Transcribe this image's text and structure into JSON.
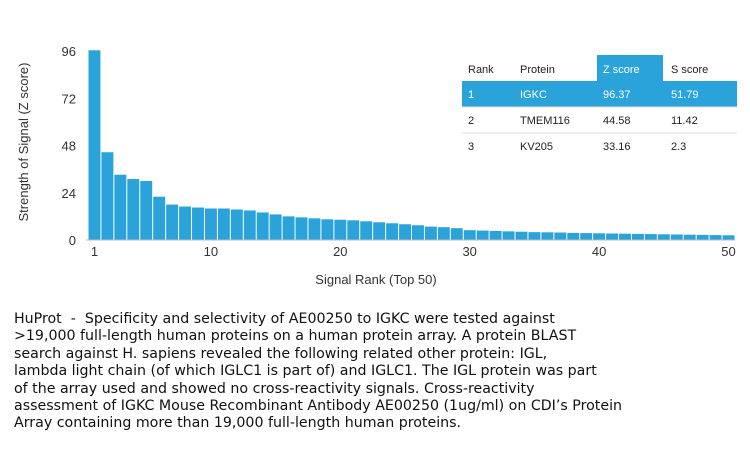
{
  "chart_data": {
    "type": "bar",
    "title": "",
    "xlabel": "Signal Rank (Top 50)",
    "ylabel": "Strength of Signal (Z score)",
    "xlim": [
      1,
      50
    ],
    "ylim": [
      0,
      96
    ],
    "x_ticks": [
      1,
      10,
      20,
      30,
      40,
      50
    ],
    "y_ticks": [
      0,
      24,
      48,
      72,
      96
    ],
    "grid": false,
    "bar_color": "#2aa3db",
    "x": [
      1,
      2,
      3,
      4,
      5,
      6,
      7,
      8,
      9,
      10,
      11,
      12,
      13,
      14,
      15,
      16,
      17,
      18,
      19,
      20,
      21,
      22,
      23,
      24,
      25,
      26,
      27,
      28,
      29,
      30,
      31,
      32,
      33,
      34,
      35,
      36,
      37,
      38,
      39,
      40,
      41,
      42,
      43,
      44,
      45,
      46,
      47,
      48,
      49,
      50
    ],
    "values": [
      96.37,
      44.58,
      33.16,
      31,
      30,
      22,
      18,
      17,
      16.5,
      16,
      16,
      15.5,
      15,
      14,
      13,
      12,
      11.5,
      11,
      10.5,
      10.3,
      10,
      9.5,
      9,
      8.5,
      8,
      7.5,
      6.8,
      6.5,
      6,
      5,
      4.8,
      4.6,
      4.4,
      4.2,
      4.0,
      3.9,
      3.8,
      3.6,
      3.5,
      3.4,
      3.3,
      3.2,
      3.1,
      3.0,
      2.9,
      2.8,
      2.7,
      2.6,
      2.5,
      2.4
    ]
  },
  "table": {
    "headers": [
      "Rank",
      "Protein",
      "Z score",
      "S score"
    ],
    "rows": [
      [
        "1",
        "IGKC",
        "96.37",
        "51.79"
      ],
      [
        "2",
        "TMEM116",
        "44.58",
        "11.42"
      ],
      [
        "3",
        "KV205",
        "33.16",
        "2.3"
      ]
    ],
    "highlight_color": "#2aa3db"
  },
  "caption": "HuProt  -  Specificity and selectivity of AE00250 to IGKC were tested against\n>19,000 full-length human proteins on a human protein array. A protein BLAST\nsearch against H. sapiens revealed the following related other protein: IGL,\nlambda light chain (of which IGLC1 is part of) and IGLC1. The IGL protein was part\nof the array used and showed no cross-reactivity signals. Cross-reactivity\nassessment of IGKC Mouse Recombinant Antibody AE00250 (1ug/ml) on CDI’s Protein\nArray containing more than 19,000 full-length human proteins."
}
